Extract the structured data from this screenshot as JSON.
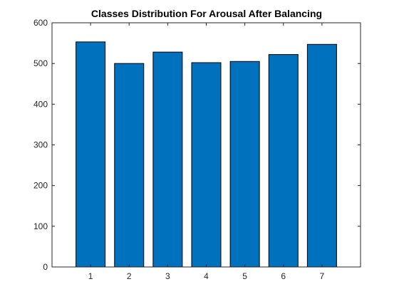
{
  "chart_data": {
    "type": "bar",
    "title": "Classes Distribution For Arousal After Balancing",
    "xlabel": "",
    "ylabel": "",
    "categories": [
      "1",
      "2",
      "3",
      "4",
      "5",
      "6",
      "7"
    ],
    "values": [
      553,
      500,
      528,
      502,
      505,
      522,
      547
    ],
    "xlim": [
      0,
      8
    ],
    "ylim": [
      0,
      600
    ],
    "yticks": [
      0,
      100,
      200,
      300,
      400,
      500,
      600
    ],
    "grid": false,
    "legend": "none",
    "colors": {
      "bar_fill": "#0072BD",
      "bar_edge": "#000000",
      "axes": "#262626"
    }
  }
}
